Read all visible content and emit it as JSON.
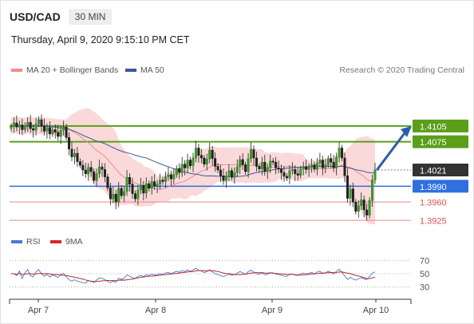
{
  "header": {
    "symbol": "USD/CAD",
    "timeframe": "30 MIN"
  },
  "datetime": "Thursday, April 9, 2020 9:15:10 PM CET",
  "legend": {
    "ma20": {
      "label": "MA 20 + Bollinger Bands",
      "color": "#f28b8b"
    },
    "ma50": {
      "label": "MA 50",
      "color": "#3a5a9a"
    },
    "rsi": {
      "label": "RSI",
      "color": "#4b78d1"
    },
    "ma9": {
      "label": "9MA",
      "color": "#d62728"
    }
  },
  "credit": "Research © 2020 Trading Central",
  "chart_data": {
    "type": "candlestick",
    "ylim": [
      1.3913,
      1.4187
    ],
    "levels": [
      {
        "label": "1.4105",
        "value": 1.4105,
        "kind": "resistance",
        "color": "#5a9e1a"
      },
      {
        "label": "1.4075",
        "value": 1.4075,
        "kind": "resistance",
        "color": "#5a9e1a"
      },
      {
        "label": "1.4021",
        "value": 1.4021,
        "kind": "current",
        "color": "#333333"
      },
      {
        "label": "1.3990",
        "value": 1.399,
        "kind": "pivot",
        "color": "#2f6fe0"
      },
      {
        "label": "1.3960",
        "value": 1.396,
        "kind": "support",
        "color": "#d9534f"
      },
      {
        "label": "1.3925",
        "value": 1.3925,
        "kind": "support",
        "color": "#d9534f"
      }
    ],
    "x_ticks": [
      "Apr 7",
      "Apr 8",
      "Apr 9",
      "Apr 10"
    ],
    "rsi_levels": [
      "70",
      "50",
      "30"
    ],
    "forecast": {
      "from": 1.4021,
      "to": 1.4105,
      "direction": "up"
    },
    "close_series": [
      1.4104,
      1.4111,
      1.4103,
      1.4107,
      1.4098,
      1.4106,
      1.4112,
      1.41,
      1.4097,
      1.4109,
      1.4117,
      1.4105,
      1.4095,
      1.4102,
      1.409,
      1.4098,
      1.4093,
      1.4085,
      1.4097,
      1.4103,
      1.4083,
      1.4061,
      1.4046,
      1.4053,
      1.4037,
      1.403,
      1.4021,
      1.4014,
      1.4026,
      1.4018,
      1.4001,
      1.4014,
      1.4027,
      1.4022,
      1.4008,
      1.3987,
      1.3966,
      1.3975,
      1.396,
      1.3986,
      1.3972,
      1.398,
      1.4007,
      1.3994,
      1.3976,
      1.3966,
      1.3983,
      1.3992,
      1.3977,
      1.3995,
      1.3986,
      1.3999,
      1.3991,
      1.3994,
      1.4002,
      1.3999,
      1.4008,
      1.4012,
      1.4004,
      1.4012,
      1.4024,
      1.4016,
      1.4032,
      1.4025,
      1.404,
      1.4029,
      1.4044,
      1.4063,
      1.4049,
      1.4044,
      1.4032,
      1.4042,
      1.4059,
      1.4043,
      1.4028,
      1.4021,
      1.401,
      1.4001,
      1.401,
      1.402,
      1.4007,
      1.4016,
      1.4027,
      1.4041,
      1.4031,
      1.4018,
      1.4043,
      1.406,
      1.4044,
      1.4028,
      1.4023,
      1.4036,
      1.4018,
      1.4025,
      1.4038,
      1.4036,
      1.4025,
      1.4023,
      1.4016,
      1.4009,
      1.4006,
      1.402,
      1.4022,
      1.4014,
      1.4011,
      1.4023,
      1.4027,
      1.4022,
      1.4026,
      1.4031,
      1.4023,
      1.4034,
      1.404,
      1.4025,
      1.4031,
      1.4043,
      1.4036,
      1.4025,
      1.4046,
      1.4063,
      1.4044,
      1.401,
      1.3967,
      1.3985,
      1.396,
      1.3942,
      1.3953,
      1.3964,
      1.3945,
      1.3935,
      1.3963,
      1.4002,
      1.4021
    ]
  }
}
